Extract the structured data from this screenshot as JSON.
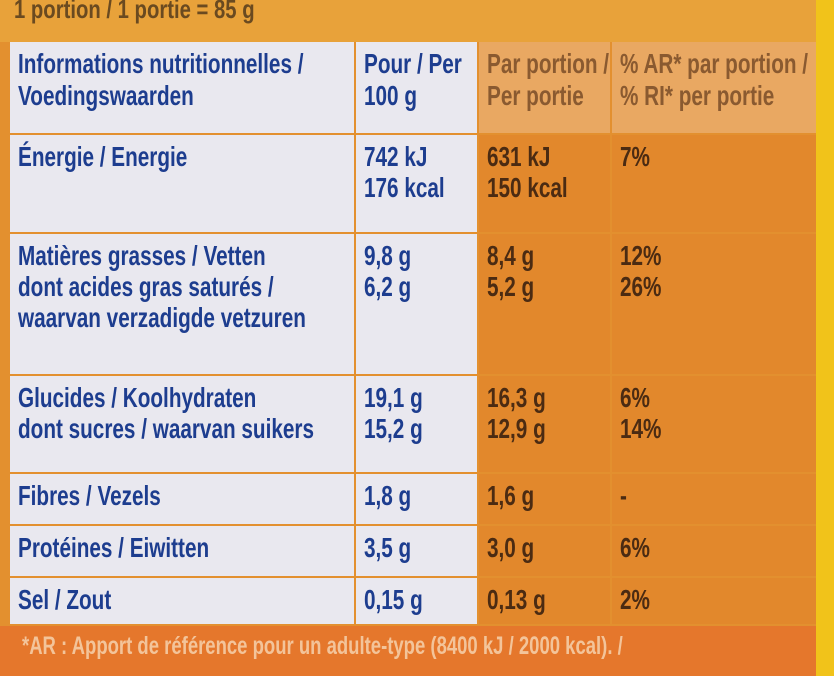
{
  "header": {
    "portion": "1 portion / 1 portie = 85 g"
  },
  "table": {
    "columns": [
      [
        "Informations nutritionnelles /",
        "Voedingswaarden"
      ],
      [
        "Pour / Per",
        "100 g"
      ],
      [
        "Par portion /",
        "Per portie"
      ],
      [
        "% AR* par portion /",
        "% RI* per portie"
      ]
    ],
    "rows": [
      [
        [
          "Énergie / Energie"
        ],
        [
          "742 kJ",
          "176 kcal"
        ],
        [
          "631 kJ",
          "150 kcal"
        ],
        [
          "7%"
        ]
      ],
      [
        [
          "Matières grasses / Vetten",
          "dont acides gras saturés /",
          "waarvan verzadigde vetzuren"
        ],
        [
          "9,8 g",
          "6,2 g"
        ],
        [
          "8,4 g",
          "5,2 g"
        ],
        [
          "12%",
          "26%"
        ]
      ],
      [
        [
          "Glucides / Koolhydraten",
          "dont sucres / waarvan suikers"
        ],
        [
          "19,1 g",
          "15,2 g"
        ],
        [
          "16,3 g",
          "12,9 g"
        ],
        [
          "6%",
          "14%"
        ]
      ],
      [
        [
          "Fibres / Vezels"
        ],
        [
          "1,8 g"
        ],
        [
          "1,6 g"
        ],
        [
          "-"
        ]
      ],
      [
        [
          "Protéines / Eiwitten"
        ],
        [
          "3,5 g"
        ],
        [
          "3,0 g"
        ],
        [
          "6%"
        ]
      ],
      [
        [
          "Sel / Zout"
        ],
        [
          "0,15 g"
        ],
        [
          "0,13 g"
        ],
        [
          "2%"
        ]
      ]
    ]
  },
  "footnote": "*AR : Apport de référence pour un adulte-type (8400 kJ / 2000 kcal). /"
}
